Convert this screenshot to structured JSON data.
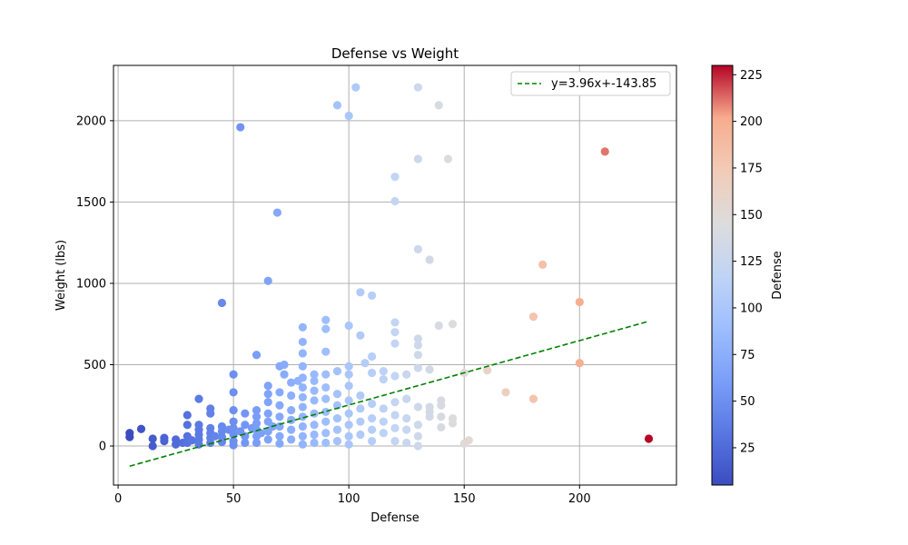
{
  "chart_data": {
    "type": "scatter",
    "title": "Defense vs Weight",
    "xlabel": "Defense",
    "ylabel": "Weight (lbs)",
    "xlim": [
      -2,
      242
    ],
    "ylim": [
      -240,
      2340
    ],
    "xticks": [
      0,
      50,
      100,
      150,
      200
    ],
    "yticks": [
      0,
      500,
      1000,
      1500,
      2000
    ],
    "grid": true,
    "legend_position": "top-right",
    "trendline": {
      "label": "y=3.96x+-143.85",
      "slope": 3.96,
      "intercept": -143.85,
      "x_range": [
        5,
        230
      ],
      "color": "#008000"
    },
    "colorbar": {
      "label": "Defense",
      "colormap": "coolwarm",
      "range": [
        5,
        230
      ],
      "ticks": [
        25,
        50,
        75,
        100,
        125,
        150,
        175,
        200,
        225
      ]
    },
    "points": [
      [
        5,
        80
      ],
      [
        5,
        55
      ],
      [
        10,
        105
      ],
      [
        15,
        45
      ],
      [
        15,
        0
      ],
      [
        20,
        30
      ],
      [
        20,
        50
      ],
      [
        25,
        40
      ],
      [
        25,
        10
      ],
      [
        28,
        20
      ],
      [
        30,
        190
      ],
      [
        30,
        130
      ],
      [
        30,
        60
      ],
      [
        30,
        20
      ],
      [
        32,
        35
      ],
      [
        35,
        290
      ],
      [
        35,
        130
      ],
      [
        35,
        100
      ],
      [
        35,
        70
      ],
      [
        35,
        40
      ],
      [
        35,
        10
      ],
      [
        40,
        230
      ],
      [
        40,
        200
      ],
      [
        40,
        110
      ],
      [
        40,
        80
      ],
      [
        40,
        50
      ],
      [
        40,
        20
      ],
      [
        42,
        60
      ],
      [
        45,
        880
      ],
      [
        45,
        120
      ],
      [
        45,
        90
      ],
      [
        45,
        55
      ],
      [
        45,
        25
      ],
      [
        48,
        100
      ],
      [
        50,
        440
      ],
      [
        50,
        330
      ],
      [
        50,
        220
      ],
      [
        50,
        150
      ],
      [
        50,
        110
      ],
      [
        50,
        70
      ],
      [
        50,
        30
      ],
      [
        50,
        5
      ],
      [
        53,
        1960
      ],
      [
        53,
        90
      ],
      [
        55,
        200
      ],
      [
        55,
        130
      ],
      [
        55,
        60
      ],
      [
        55,
        20
      ],
      [
        58,
        110
      ],
      [
        60,
        560
      ],
      [
        60,
        220
      ],
      [
        60,
        180
      ],
      [
        60,
        140
      ],
      [
        60,
        100
      ],
      [
        60,
        60
      ],
      [
        60,
        20
      ],
      [
        62,
        80
      ],
      [
        65,
        1015
      ],
      [
        65,
        370
      ],
      [
        65,
        320
      ],
      [
        65,
        270
      ],
      [
        65,
        200
      ],
      [
        65,
        150
      ],
      [
        65,
        90
      ],
      [
        65,
        40
      ],
      [
        67,
        120
      ],
      [
        69,
        1435
      ],
      [
        70,
        490
      ],
      [
        70,
        330
      ],
      [
        70,
        250
      ],
      [
        70,
        180
      ],
      [
        70,
        120
      ],
      [
        70,
        60
      ],
      [
        70,
        15
      ],
      [
        72,
        500
      ],
      [
        72,
        440
      ],
      [
        75,
        390
      ],
      [
        75,
        310
      ],
      [
        75,
        220
      ],
      [
        75,
        160
      ],
      [
        75,
        100
      ],
      [
        75,
        40
      ],
      [
        78,
        400
      ],
      [
        80,
        730
      ],
      [
        80,
        640
      ],
      [
        80,
        570
      ],
      [
        80,
        490
      ],
      [
        80,
        420
      ],
      [
        80,
        360
      ],
      [
        80,
        300
      ],
      [
        80,
        240
      ],
      [
        80,
        180
      ],
      [
        80,
        120
      ],
      [
        80,
        60
      ],
      [
        80,
        10
      ],
      [
        85,
        440
      ],
      [
        85,
        400
      ],
      [
        85,
        340
      ],
      [
        85,
        280
      ],
      [
        85,
        200
      ],
      [
        85,
        130
      ],
      [
        85,
        70
      ],
      [
        85,
        20
      ],
      [
        90,
        775
      ],
      [
        90,
        720
      ],
      [
        90,
        580
      ],
      [
        90,
        440
      ],
      [
        90,
        360
      ],
      [
        90,
        290
      ],
      [
        90,
        210
      ],
      [
        90,
        150
      ],
      [
        90,
        80
      ],
      [
        90,
        20
      ],
      [
        95,
        2095
      ],
      [
        95,
        460
      ],
      [
        95,
        320
      ],
      [
        95,
        250
      ],
      [
        95,
        170
      ],
      [
        95,
        100
      ],
      [
        95,
        30
      ],
      [
        100,
        2030
      ],
      [
        100,
        740
      ],
      [
        100,
        490
      ],
      [
        100,
        440
      ],
      [
        100,
        370
      ],
      [
        100,
        280
      ],
      [
        100,
        200
      ],
      [
        100,
        130
      ],
      [
        100,
        60
      ],
      [
        100,
        10
      ],
      [
        103,
        2205
      ],
      [
        105,
        945
      ],
      [
        105,
        680
      ],
      [
        105,
        310
      ],
      [
        105,
        230
      ],
      [
        105,
        150
      ],
      [
        105,
        70
      ],
      [
        107,
        510
      ],
      [
        110,
        925
      ],
      [
        110,
        550
      ],
      [
        110,
        450
      ],
      [
        110,
        260
      ],
      [
        110,
        170
      ],
      [
        110,
        100
      ],
      [
        110,
        30
      ],
      [
        115,
        460
      ],
      [
        115,
        410
      ],
      [
        115,
        230
      ],
      [
        115,
        150
      ],
      [
        115,
        80
      ],
      [
        120,
        1655
      ],
      [
        120,
        1505
      ],
      [
        120,
        760
      ],
      [
        120,
        700
      ],
      [
        120,
        630
      ],
      [
        120,
        430
      ],
      [
        120,
        270
      ],
      [
        120,
        190
      ],
      [
        120,
        110
      ],
      [
        120,
        30
      ],
      [
        125,
        440
      ],
      [
        125,
        290
      ],
      [
        125,
        170
      ],
      [
        125,
        100
      ],
      [
        125,
        20
      ],
      [
        130,
        2205
      ],
      [
        130,
        1765
      ],
      [
        130,
        1210
      ],
      [
        130,
        660
      ],
      [
        130,
        620
      ],
      [
        130,
        560
      ],
      [
        130,
        480
      ],
      [
        130,
        240
      ],
      [
        130,
        130
      ],
      [
        130,
        60
      ],
      [
        130,
        0
      ],
      [
        135,
        1145
      ],
      [
        135,
        470
      ],
      [
        135,
        240
      ],
      [
        135,
        210
      ],
      [
        135,
        180
      ],
      [
        139,
        2095
      ],
      [
        139,
        740
      ],
      [
        140,
        280
      ],
      [
        140,
        250
      ],
      [
        140,
        180
      ],
      [
        140,
        115
      ],
      [
        143,
        1765
      ],
      [
        145,
        750
      ],
      [
        145,
        170
      ],
      [
        145,
        140
      ],
      [
        150,
        450
      ],
      [
        150,
        15
      ],
      [
        152,
        35
      ],
      [
        160,
        465
      ],
      [
        168,
        330
      ],
      [
        180,
        795
      ],
      [
        180,
        290
      ],
      [
        184,
        1115
      ],
      [
        200,
        885
      ],
      [
        200,
        510
      ],
      [
        211,
        1810
      ],
      [
        230,
        45
      ]
    ]
  }
}
